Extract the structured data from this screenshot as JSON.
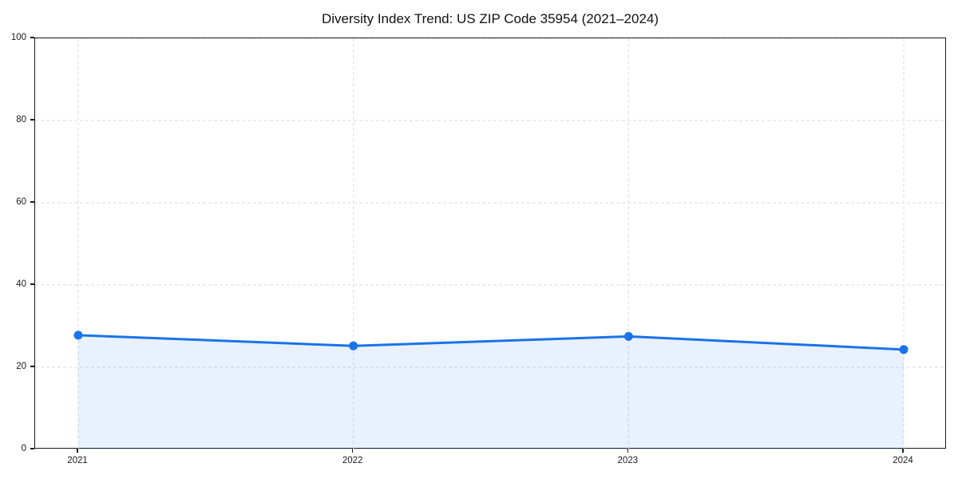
{
  "chart_data": {
    "type": "area",
    "title": "Diversity Index Trend: US ZIP Code 35954 (2021–2024)",
    "categories": [
      "2021",
      "2022",
      "2023",
      "2024"
    ],
    "values": [
      27.8,
      25.2,
      27.5,
      24.3
    ],
    "series_name": "Diversity Index",
    "xlabel": "",
    "ylabel": "",
    "ylim": [
      0,
      100
    ],
    "yticks": [
      0,
      20,
      40,
      60,
      80,
      100
    ],
    "grid": true,
    "grid_style": "dashed",
    "legend_position": "none",
    "line_color": "#1a73e8",
    "marker_color": "#1a73e8",
    "fill_color": "#1a73e8",
    "fill_opacity": 0.1,
    "grid_color": "#e2e2e2",
    "axis_color": "#1a1a1a"
  }
}
